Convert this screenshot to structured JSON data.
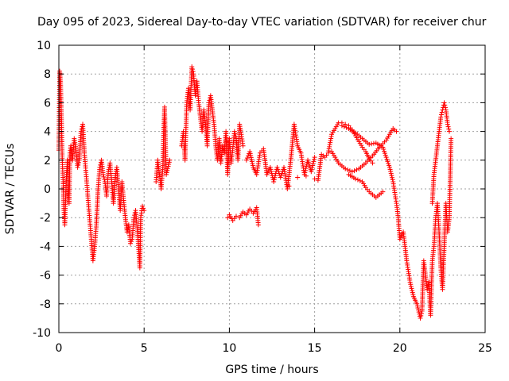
{
  "chart_data": {
    "type": "scatter",
    "title": "Day 095 of 2023, Sidereal Day-to-day VTEC variation (SDTVAR) for receiver chur",
    "xlabel": "GPS time / hours",
    "ylabel": "SDTVAR / TECUs",
    "xlim": [
      0,
      25
    ],
    "ylim": [
      -10,
      10
    ],
    "xticks": [
      0,
      5,
      10,
      15,
      20,
      25
    ],
    "yticks": [
      -10,
      -8,
      -6,
      -4,
      -2,
      0,
      2,
      4,
      6,
      8,
      10
    ],
    "grid": true,
    "marker": "+",
    "color": "#ff0000",
    "series": [
      {
        "name": "SDTVAR",
        "points": [
          [
            0.0,
            2.7
          ],
          [
            0.05,
            8.2
          ],
          [
            0.1,
            7.5
          ],
          [
            0.15,
            5.0
          ],
          [
            0.2,
            2.0
          ],
          [
            0.25,
            0.5
          ],
          [
            0.3,
            -1.5
          ],
          [
            0.35,
            -2.5
          ],
          [
            0.4,
            -0.5
          ],
          [
            0.45,
            1.0
          ],
          [
            0.5,
            2.0
          ],
          [
            0.55,
            0.0
          ],
          [
            0.6,
            -1.0
          ],
          [
            0.65,
            2.5
          ],
          [
            0.7,
            3.0
          ],
          [
            0.8,
            2.0
          ],
          [
            0.9,
            3.5
          ],
          [
            1.0,
            2.8
          ],
          [
            1.1,
            1.5
          ],
          [
            1.2,
            2.0
          ],
          [
            1.3,
            4.0
          ],
          [
            1.4,
            4.5
          ],
          [
            1.5,
            2.5
          ],
          [
            1.6,
            1.0
          ],
          [
            1.7,
            -0.5
          ],
          [
            1.8,
            -2.0
          ],
          [
            1.9,
            -3.5
          ],
          [
            2.0,
            -5.0
          ],
          [
            2.1,
            -4.0
          ],
          [
            2.2,
            -2.5
          ],
          [
            2.3,
            0.0
          ],
          [
            2.4,
            1.5
          ],
          [
            2.5,
            2.0
          ],
          [
            2.6,
            1.0
          ],
          [
            2.7,
            0.5
          ],
          [
            2.8,
            -0.5
          ],
          [
            2.9,
            1.2
          ],
          [
            3.0,
            1.8
          ],
          [
            3.1,
            0.5
          ],
          [
            3.2,
            -1.0
          ],
          [
            3.3,
            0.8
          ],
          [
            3.4,
            1.5
          ],
          [
            3.5,
            0.0
          ],
          [
            3.6,
            -1.5
          ],
          [
            3.7,
            0.5
          ],
          [
            3.8,
            -0.8
          ],
          [
            3.9,
            -2.0
          ],
          [
            4.0,
            -3.0
          ],
          [
            4.1,
            -2.5
          ],
          [
            4.2,
            -3.8
          ],
          [
            4.3,
            -3.5
          ],
          [
            4.4,
            -2.0
          ],
          [
            4.5,
            -1.5
          ],
          [
            4.6,
            -2.8
          ],
          [
            4.7,
            -4.5
          ],
          [
            4.75,
            -5.5
          ],
          [
            4.8,
            -2.0
          ],
          [
            4.9,
            -1.2
          ],
          [
            5.0,
            -1.5
          ],
          [
            5.7,
            0.5
          ],
          [
            5.8,
            2.0
          ],
          [
            5.9,
            1.0
          ],
          [
            6.0,
            0.0
          ],
          [
            6.1,
            1.5
          ],
          [
            6.15,
            4.0
          ],
          [
            6.2,
            5.7
          ],
          [
            6.3,
            1.0
          ],
          [
            6.5,
            2.0
          ],
          [
            7.2,
            3.0
          ],
          [
            7.3,
            4.0
          ],
          [
            7.4,
            2.0
          ],
          [
            7.5,
            6.0
          ],
          [
            7.6,
            7.0
          ],
          [
            7.7,
            5.5
          ],
          [
            7.8,
            8.5
          ],
          [
            7.9,
            8.0
          ],
          [
            8.0,
            6.5
          ],
          [
            8.1,
            7.5
          ],
          [
            8.2,
            6.0
          ],
          [
            8.3,
            5.0
          ],
          [
            8.4,
            4.0
          ],
          [
            8.5,
            5.5
          ],
          [
            8.6,
            4.5
          ],
          [
            8.7,
            3.0
          ],
          [
            8.8,
            6.0
          ],
          [
            8.9,
            6.5
          ],
          [
            9.0,
            5.5
          ],
          [
            9.1,
            4.5
          ],
          [
            9.2,
            3.0
          ],
          [
            9.3,
            2.0
          ],
          [
            9.4,
            3.5
          ],
          [
            9.5,
            1.8
          ],
          [
            9.6,
            3.0
          ],
          [
            9.7,
            2.5
          ],
          [
            9.8,
            4.0
          ],
          [
            9.9,
            1.0
          ],
          [
            10.0,
            3.5
          ],
          [
            10.1,
            1.8
          ],
          [
            10.2,
            2.8
          ],
          [
            10.3,
            4.0
          ],
          [
            10.4,
            3.5
          ],
          [
            10.5,
            2.0
          ],
          [
            10.6,
            4.5
          ],
          [
            10.7,
            3.8
          ],
          [
            10.8,
            3.0
          ],
          [
            9.9,
            -2.0
          ],
          [
            10.0,
            -1.8
          ],
          [
            10.2,
            -2.2
          ],
          [
            10.4,
            -1.9
          ],
          [
            10.6,
            -2.0
          ],
          [
            10.8,
            -1.6
          ],
          [
            11.0,
            -1.8
          ],
          [
            11.2,
            -1.4
          ],
          [
            11.4,
            -1.7
          ],
          [
            11.6,
            -1.3
          ],
          [
            11.7,
            -2.5
          ],
          [
            11.0,
            2.0
          ],
          [
            11.2,
            2.6
          ],
          [
            11.4,
            1.5
          ],
          [
            11.6,
            1.0
          ],
          [
            11.8,
            2.5
          ],
          [
            12.0,
            2.8
          ],
          [
            12.2,
            1.0
          ],
          [
            12.4,
            1.5
          ],
          [
            12.6,
            0.5
          ],
          [
            12.8,
            1.5
          ],
          [
            13.0,
            0.8
          ],
          [
            13.2,
            1.5
          ],
          [
            13.4,
            0.0
          ],
          [
            13.6,
            2.0
          ],
          [
            13.8,
            4.5
          ],
          [
            14.0,
            3.0
          ],
          [
            14.2,
            2.5
          ],
          [
            14.4,
            1.0
          ],
          [
            14.6,
            2.0
          ],
          [
            14.8,
            1.2
          ],
          [
            15.0,
            2.2
          ],
          [
            13.5,
            0.2
          ],
          [
            14.0,
            0.8
          ],
          [
            14.5,
            0.9
          ],
          [
            15.0,
            0.7
          ],
          [
            15.2,
            0.6
          ],
          [
            15.4,
            2.4
          ],
          [
            15.6,
            2.2
          ],
          [
            15.8,
            2.5
          ],
          [
            16.0,
            3.8
          ],
          [
            16.2,
            4.2
          ],
          [
            16.4,
            4.6
          ],
          [
            16.6,
            4.6
          ],
          [
            16.8,
            4.5
          ],
          [
            17.0,
            4.4
          ],
          [
            17.2,
            4.1
          ],
          [
            17.4,
            3.7
          ],
          [
            17.6,
            3.3
          ],
          [
            17.8,
            2.9
          ],
          [
            18.0,
            2.6
          ],
          [
            18.2,
            2.1
          ],
          [
            18.4,
            1.8
          ],
          [
            16.0,
            2.6
          ],
          [
            16.4,
            1.8
          ],
          [
            16.8,
            1.4
          ],
          [
            17.2,
            1.2
          ],
          [
            17.6,
            1.4
          ],
          [
            18.0,
            1.8
          ],
          [
            18.4,
            2.3
          ],
          [
            18.8,
            2.9
          ],
          [
            19.2,
            3.4
          ],
          [
            19.6,
            4.2
          ],
          [
            19.8,
            4.0
          ],
          [
            17.0,
            1.0
          ],
          [
            17.4,
            0.7
          ],
          [
            17.8,
            0.5
          ],
          [
            18.0,
            0.1
          ],
          [
            18.2,
            -0.2
          ],
          [
            18.4,
            -0.4
          ],
          [
            18.6,
            -0.6
          ],
          [
            18.8,
            -0.4
          ],
          [
            19.0,
            -0.2
          ],
          [
            16.6,
            4.4
          ],
          [
            17.0,
            4.2
          ],
          [
            17.4,
            3.9
          ],
          [
            17.8,
            3.5
          ],
          [
            18.2,
            3.1
          ],
          [
            18.6,
            3.2
          ],
          [
            19.0,
            2.9
          ],
          [
            19.2,
            2.2
          ],
          [
            19.4,
            1.5
          ],
          [
            19.6,
            0.5
          ],
          [
            19.8,
            -1.0
          ],
          [
            19.9,
            -2.0
          ],
          [
            20.0,
            -3.5
          ],
          [
            20.2,
            -3.0
          ],
          [
            20.4,
            -5.0
          ],
          [
            20.6,
            -6.5
          ],
          [
            20.8,
            -7.5
          ],
          [
            21.0,
            -8.0
          ],
          [
            21.2,
            -9.0
          ],
          [
            21.3,
            -8.5
          ],
          [
            21.4,
            -5.0
          ],
          [
            21.5,
            -6.0
          ],
          [
            21.6,
            -7.0
          ],
          [
            21.7,
            -6.5
          ],
          [
            21.8,
            -8.8
          ],
          [
            21.9,
            -5.0
          ],
          [
            22.0,
            -4.0
          ],
          [
            22.1,
            -2.0
          ],
          [
            22.2,
            -1.0
          ],
          [
            22.3,
            -3.0
          ],
          [
            22.4,
            -5.5
          ],
          [
            22.5,
            -7.0
          ],
          [
            22.6,
            -4.0
          ],
          [
            22.7,
            -1.0
          ],
          [
            22.8,
            -3.0
          ],
          [
            22.9,
            -2.0
          ],
          [
            23.0,
            3.5
          ],
          [
            21.9,
            -1.0
          ],
          [
            22.0,
            1.0
          ],
          [
            22.1,
            2.0
          ],
          [
            22.2,
            3.0
          ],
          [
            22.3,
            4.0
          ],
          [
            22.4,
            5.0
          ],
          [
            22.5,
            5.5
          ],
          [
            22.6,
            6.0
          ],
          [
            22.7,
            5.5
          ],
          [
            22.8,
            4.5
          ],
          [
            22.9,
            4.0
          ]
        ]
      }
    ]
  }
}
